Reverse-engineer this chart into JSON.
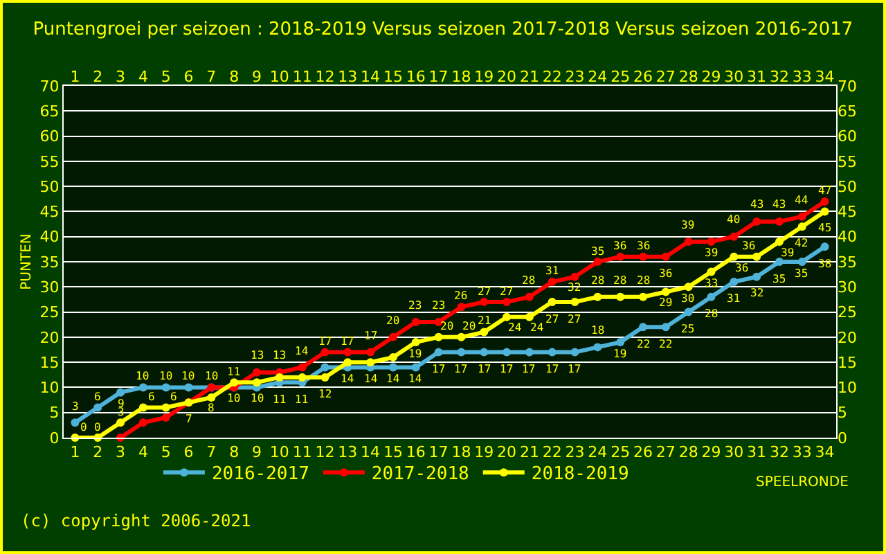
{
  "chart_data": {
    "type": "line",
    "title": "Puntengroei per seizoen : 2018-2019 Versus seizoen 2017-2018 Versus seizoen 2016-2017",
    "xlabel": "SPEELRONDE",
    "ylabel": "PUNTEN",
    "x": [
      1,
      2,
      3,
      4,
      5,
      6,
      7,
      8,
      9,
      10,
      11,
      12,
      13,
      14,
      15,
      16,
      17,
      18,
      19,
      20,
      21,
      22,
      23,
      24,
      25,
      26,
      27,
      28,
      29,
      30,
      31,
      32,
      33,
      34
    ],
    "series": [
      {
        "name": "2016-2017",
        "color": "#4fb3d9",
        "values": [
          3,
          6,
          9,
          10,
          10,
          10,
          10,
          10,
          10,
          11,
          11,
          14,
          14,
          14,
          14,
          14,
          17,
          17,
          17,
          17,
          17,
          17,
          17,
          18,
          19,
          22,
          22,
          25,
          28,
          31,
          32,
          35,
          35,
          38
        ],
        "value_labels": [
          "3",
          "6",
          "9",
          "10",
          "10",
          "10",
          null,
          null,
          "10",
          "11",
          "11",
          null,
          "14",
          "14",
          "14",
          "14",
          "17",
          "17",
          "17",
          "17",
          "17",
          "17",
          "17",
          "18",
          "19",
          "22",
          "22",
          "25",
          "28",
          "31",
          "32",
          "35",
          "35",
          "38"
        ]
      },
      {
        "name": "2017-2018",
        "color": "#ff0000",
        "values": [
          null,
          null,
          0,
          3,
          4,
          7,
          10,
          10,
          13,
          13,
          14,
          17,
          17,
          17,
          20,
          23,
          23,
          26,
          27,
          27,
          28,
          31,
          32,
          35,
          36,
          36,
          36,
          39,
          39,
          40,
          43,
          43,
          44,
          47
        ],
        "value_labels": [
          null,
          null,
          null,
          null,
          null,
          null,
          "10",
          "10",
          "13",
          "13",
          "14",
          "17",
          "17",
          "17",
          "20",
          "23",
          "23",
          "26",
          "27",
          "27",
          "28",
          "31",
          "32",
          "35",
          "36",
          "36",
          "36",
          "39",
          "39",
          "40",
          "43",
          "43",
          "44",
          "47"
        ]
      },
      {
        "name": "2018-2019",
        "color": "#ffff00",
        "values": [
          0,
          0,
          3,
          6,
          6,
          7,
          8,
          11,
          11,
          12,
          12,
          12,
          15,
          15,
          16,
          19,
          20,
          20,
          21,
          24,
          24,
          27,
          27,
          28,
          28,
          28,
          29,
          30,
          33,
          36,
          36,
          39,
          42,
          45
        ],
        "value_labels": [
          "0",
          "0",
          "3",
          "6",
          "6",
          "7",
          "8",
          "11",
          null,
          null,
          null,
          "12",
          null,
          null,
          null,
          "19",
          "20",
          "20",
          "21",
          "24",
          "24",
          "27",
          "27",
          "28",
          "28",
          "28",
          "29",
          "30",
          "33",
          "36",
          "36",
          "39",
          "42",
          "45"
        ]
      }
    ],
    "xlim": [
      0.5,
      34.5
    ],
    "xticks": [
      1,
      2,
      3,
      4,
      5,
      6,
      7,
      8,
      9,
      10,
      11,
      12,
      13,
      14,
      15,
      16,
      17,
      18,
      19,
      20,
      21,
      22,
      23,
      24,
      25,
      26,
      27,
      28,
      29,
      30,
      31,
      32,
      33,
      34
    ],
    "x2lim": [
      0.5,
      34.5
    ],
    "x2ticks": [
      1,
      2,
      3,
      4,
      5,
      6,
      7,
      8,
      9,
      10,
      11,
      12,
      13,
      14,
      15,
      16,
      17,
      18,
      19,
      20,
      21,
      22,
      23,
      24,
      25,
      26,
      27,
      28,
      29,
      30,
      31,
      32,
      33,
      34
    ],
    "ylim": [
      0,
      70
    ],
    "yticks": [
      0,
      5,
      10,
      15,
      20,
      25,
      30,
      35,
      40,
      45,
      50,
      55,
      60,
      65,
      70
    ],
    "y2lim": [
      0,
      70
    ],
    "y2ticks": [
      0,
      5,
      10,
      15,
      20,
      25,
      30,
      35,
      40,
      45,
      50,
      55,
      60,
      65,
      70
    ],
    "grid": "y",
    "legend": "bottom",
    "marker": "circle",
    "line_style": "solid",
    "annotations": [
      "(c) copyright 2006-2021"
    ]
  }
}
